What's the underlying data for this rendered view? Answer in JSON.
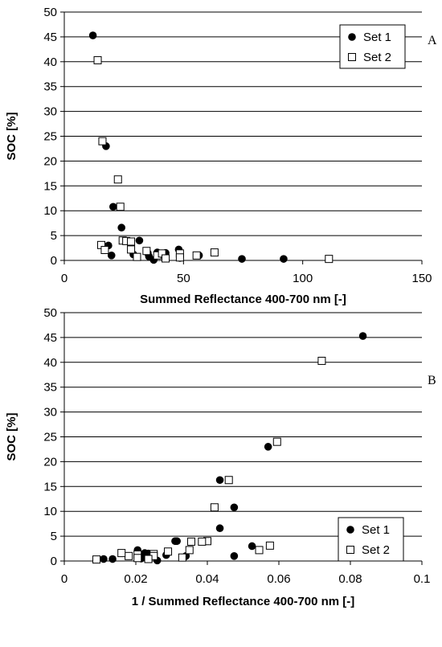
{
  "chart_data": [
    {
      "type": "scatter",
      "panel_label": "A",
      "xlabel": "Summed Reflectance 400-700 nm [-]",
      "ylabel": "SOC [%]",
      "xlim": [
        0,
        150
      ],
      "ylim": [
        0,
        50
      ],
      "x_ticks": [
        "0",
        "50",
        "100",
        "150"
      ],
      "y_ticks": [
        "0",
        "5",
        "10",
        "15",
        "20",
        "25",
        "30",
        "35",
        "40",
        "45",
        "50"
      ],
      "grid": "horizontal",
      "legend_position": "top-right",
      "series": [
        {
          "name": "Set 1",
          "marker": "filled-circle",
          "color": "#000000",
          "points": [
            [
              12,
              45.3
            ],
            [
              17.5,
              23
            ],
            [
              18.5,
              3
            ],
            [
              20.5,
              10.8
            ],
            [
              19.8,
              1
            ],
            [
              24,
              6.6
            ],
            [
              25,
              4
            ],
            [
              29,
              1.2
            ],
            [
              31.5,
              4
            ],
            [
              35,
              1.5
            ],
            [
              35.5,
              0.8
            ],
            [
              37.5,
              0.1
            ],
            [
              39,
              1.6
            ],
            [
              42.5,
              1.5
            ],
            [
              48,
              2.2
            ],
            [
              48.5,
              0.5
            ],
            [
              56.5,
              1
            ],
            [
              74.5,
              0.3
            ],
            [
              92,
              0.3
            ]
          ]
        },
        {
          "name": "Set 2",
          "marker": "open-square",
          "color": "#000000",
          "points": [
            [
              14,
              40.3
            ],
            [
              16,
              24
            ],
            [
              22.5,
              16.3
            ],
            [
              23.5,
              10.8
            ],
            [
              15.5,
              3.1
            ],
            [
              17,
              2.1
            ],
            [
              24.5,
              4
            ],
            [
              26,
              3.9
            ],
            [
              28,
              3.8
            ],
            [
              28,
              2.2
            ],
            [
              30.5,
              0.7
            ],
            [
              34.5,
              1.9
            ],
            [
              39,
              1
            ],
            [
              41,
              1.4
            ],
            [
              42.5,
              0.4
            ],
            [
              48.5,
              1.4
            ],
            [
              48.5,
              0.6
            ],
            [
              55.5,
              1
            ],
            [
              63,
              1.6
            ],
            [
              111,
              0.3
            ]
          ]
        }
      ]
    },
    {
      "type": "scatter",
      "panel_label": "B",
      "xlabel": "1 / Summed Reflectance 400-700 nm [-]",
      "ylabel": "SOC [%]",
      "xlim": [
        0,
        0.1
      ],
      "ylim": [
        0,
        50
      ],
      "x_ticks": [
        "0",
        "0.02",
        "0.04",
        "0.06",
        "0.08",
        "0.1"
      ],
      "y_ticks": [
        "0",
        "5",
        "10",
        "15",
        "20",
        "25",
        "30",
        "35",
        "40",
        "45",
        "50"
      ],
      "grid": "horizontal",
      "legend_position": "bottom-right",
      "series": [
        {
          "name": "Set 1",
          "marker": "filled-circle",
          "color": "#000000",
          "points": [
            [
              0.0835,
              45.3
            ],
            [
              0.057,
              23
            ],
            [
              0.0475,
              10.8
            ],
            [
              0.0435,
              16.3
            ],
            [
              0.0435,
              6.6
            ],
            [
              0.0525,
              3
            ],
            [
              0.0475,
              1
            ],
            [
              0.031,
              4
            ],
            [
              0.0315,
              4
            ],
            [
              0.034,
              1
            ],
            [
              0.0285,
              1.2
            ],
            [
              0.0205,
              2.2
            ],
            [
              0.0235,
              1.5
            ],
            [
              0.0245,
              1.3
            ],
            [
              0.026,
              0.1
            ],
            [
              0.011,
              0.4
            ],
            [
              0.0135,
              0.4
            ],
            [
              0.0215,
              0.5
            ],
            [
              0.0225,
              1.6
            ]
          ]
        },
        {
          "name": "Set 2",
          "marker": "open-square",
          "color": "#000000",
          "points": [
            [
              0.072,
              40.3
            ],
            [
              0.0595,
              24
            ],
            [
              0.046,
              16.3
            ],
            [
              0.042,
              10.8
            ],
            [
              0.0575,
              3.1
            ],
            [
              0.0545,
              2.2
            ],
            [
              0.04,
              4
            ],
            [
              0.0385,
              3.9
            ],
            [
              0.0355,
              3.9
            ],
            [
              0.035,
              2.2
            ],
            [
              0.033,
              0.7
            ],
            [
              0.029,
              1.9
            ],
            [
              0.025,
              1.4
            ],
            [
              0.025,
              1
            ],
            [
              0.0235,
              0.4
            ],
            [
              0.0205,
              1.3
            ],
            [
              0.0205,
              0.6
            ],
            [
              0.018,
              1
            ],
            [
              0.016,
              1.6
            ],
            [
              0.009,
              0.3
            ]
          ]
        }
      ]
    }
  ]
}
